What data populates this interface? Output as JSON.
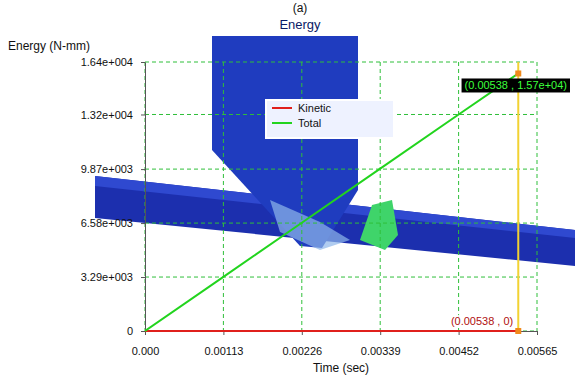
{
  "chart_data": {
    "type": "line",
    "panel_label": "(a)",
    "title": "Energy",
    "xlabel": "Time (sec)",
    "ylabel": "Energy (N-mm)",
    "x": [
      0,
      0.00113,
      0.00226,
      0.00339,
      0.00452,
      0.00538
    ],
    "series": [
      {
        "name": "Kinetic",
        "color": "#e0201c",
        "values": [
          0,
          0,
          0,
          0,
          0,
          0
        ]
      },
      {
        "name": "Total",
        "color": "#22d41e",
        "values": [
          0,
          3300,
          6600,
          9900,
          13200,
          15700
        ]
      }
    ],
    "xlim": [
      0,
      0.00565
    ],
    "xticks": [
      {
        "value": 0,
        "label": "0.000"
      },
      0.00113,
      0.00226,
      0.00339,
      0.00452,
      0.00565
    ],
    "ylim": [
      0,
      16400
    ],
    "yticks": [
      0,
      {
        "value": 3290,
        "label": "3.29e+003"
      },
      {
        "value": 6580,
        "label": "6.58e+003"
      },
      {
        "value": 9870,
        "label": "9.87e+003"
      },
      {
        "value": 13200,
        "label": "1.32e+004"
      },
      {
        "value": 16400,
        "label": "1.64e+004"
      }
    ],
    "grid": true,
    "legend": "top",
    "annotations": [
      {
        "text": "(0.00538 , 1.57e+04)",
        "x": 0.00538,
        "y": 15700
      },
      {
        "text": "(0.00538 , 0)",
        "x": 0.00538,
        "y": 0
      }
    ]
  }
}
